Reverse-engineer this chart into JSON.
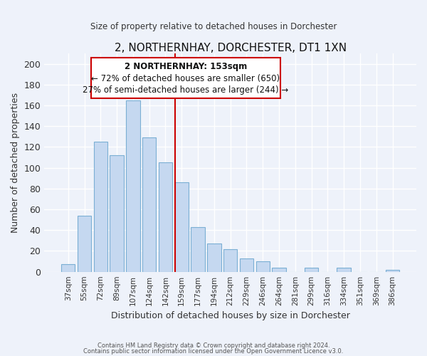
{
  "title": "2, NORTHERNHAY, DORCHESTER, DT1 1XN",
  "subtitle": "Size of property relative to detached houses in Dorchester",
  "xlabel": "Distribution of detached houses by size in Dorchester",
  "ylabel": "Number of detached properties",
  "bar_labels": [
    "37sqm",
    "55sqm",
    "72sqm",
    "89sqm",
    "107sqm",
    "124sqm",
    "142sqm",
    "159sqm",
    "177sqm",
    "194sqm",
    "212sqm",
    "229sqm",
    "246sqm",
    "264sqm",
    "281sqm",
    "299sqm",
    "316sqm",
    "334sqm",
    "351sqm",
    "369sqm",
    "386sqm"
  ],
  "bar_values": [
    7,
    54,
    125,
    112,
    165,
    129,
    105,
    86,
    43,
    27,
    22,
    13,
    10,
    4,
    0,
    4,
    0,
    4,
    0,
    0,
    2
  ],
  "bar_color": "#c5d8f0",
  "bar_edge_color": "#7bafd4",
  "vline_color": "#cc0000",
  "annotation_title": "2 NORTHERNHAY: 153sqm",
  "annotation_line1": "← 72% of detached houses are smaller (650)",
  "annotation_line2": "27% of semi-detached houses are larger (244) →",
  "annotation_box_edge": "#cc0000",
  "annotation_box_fill": "white",
  "ylim": [
    0,
    210
  ],
  "yticks": [
    0,
    20,
    40,
    60,
    80,
    100,
    120,
    140,
    160,
    180,
    200
  ],
  "footer_line1": "Contains HM Land Registry data © Crown copyright and database right 2024.",
  "footer_line2": "Contains public sector information licensed under the Open Government Licence v3.0.",
  "bg_color": "#eef2fa"
}
